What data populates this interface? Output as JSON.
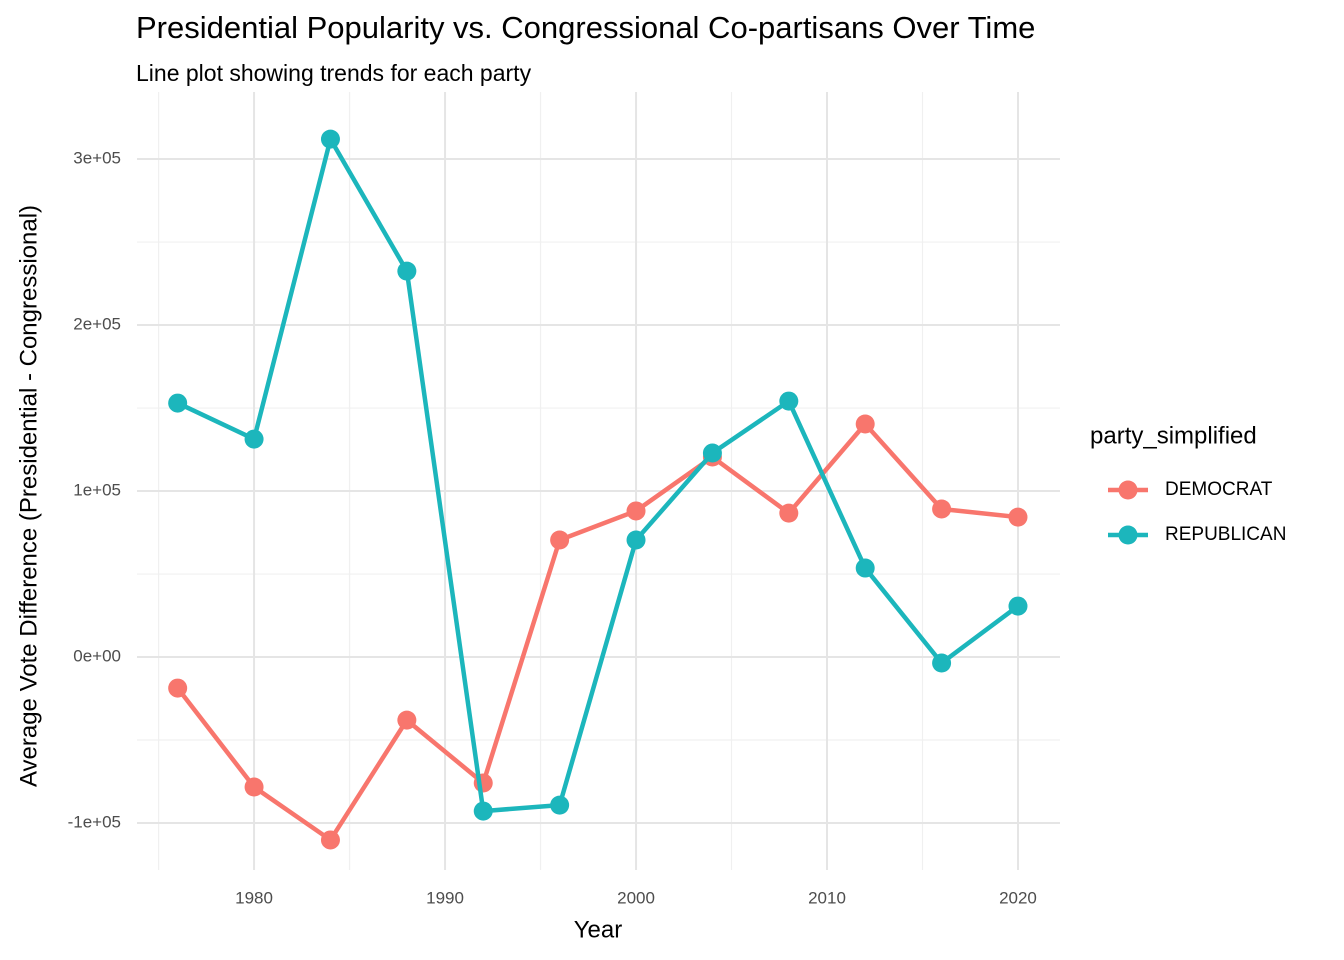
{
  "chart_data": {
    "type": "line",
    "title": "Presidential Popularity vs. Congressional Co-partisans Over Time",
    "subtitle": "Line plot showing trends for each party",
    "x_label": "Year",
    "y_label": "Average Vote Difference (Presidential - Congressional)",
    "legend_title": "party_simplified",
    "legend": "right",
    "grid": true,
    "x": [
      1976,
      1980,
      1984,
      1988,
      1992,
      1996,
      2000,
      2004,
      2008,
      2012,
      2016,
      2020
    ],
    "series": [
      {
        "name": "DEMOCRAT",
        "color": "#F8766D",
        "values": [
          -18700,
          -78300,
          -110200,
          -38000,
          -75900,
          70500,
          88000,
          120500,
          86700,
          140400,
          89200,
          84300
        ]
      },
      {
        "name": "REPUBLICAN",
        "color": "#1CB6BC",
        "values": [
          153000,
          131300,
          312000,
          232500,
          -92800,
          -89200,
          70500,
          122900,
          154200,
          53600,
          -3600,
          30700
        ]
      }
    ],
    "xlim": [
      1973.87,
      2022.2
    ],
    "xticks": [
      1980,
      1990,
      2000,
      2010,
      2020
    ],
    "ylim": [
      -128300,
      340400
    ],
    "yticks": [
      {
        "value": -100000,
        "label": "-1e+05"
      },
      {
        "value": 0,
        "label": "0e+00"
      },
      {
        "value": 100000,
        "label": "1e+05"
      },
      {
        "value": 200000,
        "label": "2e+05"
      },
      {
        "value": 300000,
        "label": "3e+05"
      }
    ]
  }
}
